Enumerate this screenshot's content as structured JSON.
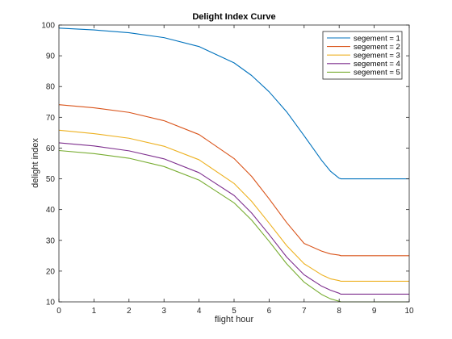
{
  "chart_data": {
    "type": "line",
    "title": "Delight Index Curve",
    "xlabel": "flight hour",
    "ylabel": "delight index",
    "xlim": [
      0,
      10
    ],
    "ylim": [
      10,
      100
    ],
    "x_ticks": [
      "0",
      "1",
      "2",
      "3",
      "4",
      "5",
      "6",
      "7",
      "8",
      "9",
      "10"
    ],
    "y_ticks": [
      "10",
      "20",
      "30",
      "40",
      "50",
      "60",
      "70",
      "80",
      "90",
      "100"
    ],
    "grid": false,
    "legend_position": "top-right",
    "x": [
      0,
      1,
      2,
      3,
      4,
      5,
      5.5,
      6,
      6.5,
      7,
      7.5,
      7.75,
      8,
      8.05,
      9,
      10
    ],
    "series": [
      {
        "name": "segement = 1",
        "color": "#0072BD",
        "values": [
          99.0,
          98.4,
          97.5,
          95.9,
          93.0,
          87.7,
          83.6,
          78.3,
          71.8,
          64.0,
          56.0,
          52.5,
          50.2,
          50.0,
          50.0,
          50.0
        ]
      },
      {
        "name": "segement = 2",
        "color": "#D95319",
        "values": [
          74.1,
          73.1,
          71.6,
          68.9,
          64.4,
          56.6,
          50.8,
          43.5,
          35.8,
          29.0,
          26.5,
          25.6,
          25.2,
          25.0,
          25.0,
          25.0
        ]
      },
      {
        "name": "segement = 3",
        "color": "#EDB120",
        "values": [
          65.8,
          64.7,
          63.2,
          60.6,
          56.2,
          48.5,
          42.7,
          35.6,
          28.3,
          22.4,
          18.8,
          17.5,
          16.9,
          16.7,
          16.7,
          16.7
        ]
      },
      {
        "name": "segement = 4",
        "color": "#7E2F8E",
        "values": [
          61.7,
          60.7,
          59.1,
          56.5,
          52.0,
          44.6,
          38.9,
          31.9,
          24.6,
          18.8,
          15.1,
          13.8,
          12.8,
          12.5,
          12.5,
          12.5
        ]
      },
      {
        "name": "segement = 5",
        "color": "#77AC30",
        "values": [
          59.2,
          58.2,
          56.7,
          54.0,
          49.6,
          42.2,
          36.6,
          29.7,
          22.4,
          16.4,
          12.4,
          11.0,
          10.2,
          10.0,
          10.0,
          10.0
        ]
      }
    ]
  }
}
